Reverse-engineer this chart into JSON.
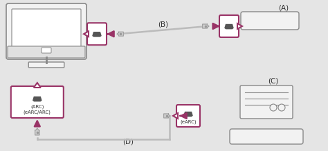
{
  "bg_color": "#e5e5e5",
  "pink": "#993366",
  "gray": "#888888",
  "light_gray": "#f2f2f2",
  "white": "#ffffff",
  "cable_gray": "#bbbbbb",
  "dark_gray": "#555555",
  "text_color": "#333333",
  "label_A": "(A)",
  "label_B": "(B)",
  "label_C": "(C)",
  "label_D": "(D)",
  "label_arc": "(ARC)",
  "label_earc_arc": "(eARC/ARC)",
  "label_earc": "(eARC)"
}
